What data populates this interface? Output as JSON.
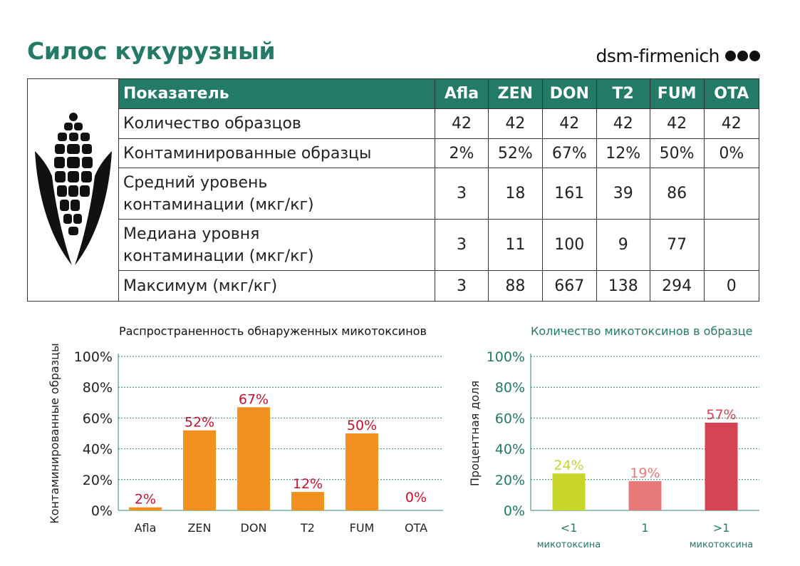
{
  "header": {
    "title": "Силос кукурузный",
    "brand": "dsm-firmenich"
  },
  "table": {
    "header": [
      "Показатель",
      "Afla",
      "ZEN",
      "DON",
      "T2",
      "FUM",
      "OTA"
    ],
    "rows": [
      {
        "label": [
          "Количество образцов"
        ],
        "values": [
          "42",
          "42",
          "42",
          "42",
          "42",
          "42"
        ]
      },
      {
        "label": [
          "Контаминированные образцы"
        ],
        "values": [
          "2%",
          "52%",
          "67%",
          "12%",
          "50%",
          "0%"
        ]
      },
      {
        "label": [
          "Средний уровень",
          "контаминации (мкг/кг)"
        ],
        "values": [
          "3",
          "18",
          "161",
          "39",
          "86",
          ""
        ]
      },
      {
        "label": [
          "Медиана уровня",
          "контаминации (мкг/кг)"
        ],
        "values": [
          "3",
          "11",
          "100",
          "9",
          "77",
          ""
        ]
      },
      {
        "label": [
          "Максимум (мкг/кг)"
        ],
        "values": [
          "3",
          "88",
          "667",
          "138",
          "294",
          "0"
        ]
      }
    ]
  },
  "chart_data": [
    {
      "type": "bar",
      "title": "Распространенность обнаруженных микотоксинов",
      "ylabel": "Контаминированные образцы",
      "xlabel": "",
      "categories": [
        "Afla",
        "ZEN",
        "DON",
        "T2",
        "FUM",
        "OTA"
      ],
      "values": [
        2,
        52,
        67,
        12,
        50,
        0
      ],
      "data_labels": [
        "2%",
        "52%",
        "67%",
        "12%",
        "50%",
        "0%"
      ],
      "yticks": [
        "0%",
        "20%",
        "40%",
        "60%",
        "80%",
        "100%"
      ],
      "ylim": [
        0,
        100
      ],
      "grid": true,
      "bar_color": "#f0901e",
      "label_color": "#c8102e"
    },
    {
      "type": "bar",
      "title": "Количество микотоксинов в образце",
      "ylabel": "Процентная доля",
      "xlabel": "",
      "categories": [
        [
          "<1",
          "микотоксина"
        ],
        [
          "1"
        ],
        [
          ">1",
          "микотоксина"
        ]
      ],
      "values": [
        24,
        19,
        57
      ],
      "data_labels": [
        "24%",
        "19%",
        "57%"
      ],
      "yticks": [
        "0%",
        "20%",
        "40%",
        "60%",
        "80%",
        "100%"
      ],
      "ylim": [
        0,
        100
      ],
      "grid": true,
      "bar_colors": [
        "#c8d62c",
        "#e8787a",
        "#d44455"
      ],
      "accent": "#237a66"
    }
  ]
}
